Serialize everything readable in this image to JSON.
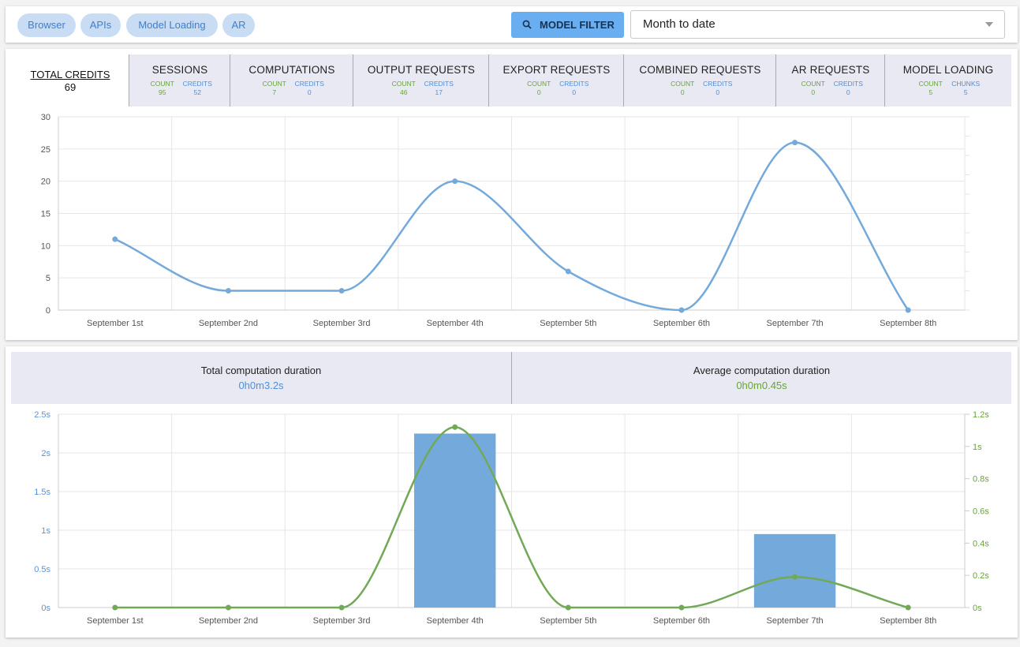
{
  "filters": {
    "chips": [
      "Browser",
      "APIs",
      "Model Loading",
      "AR"
    ],
    "filter_button_label": "MODEL FILTER",
    "date_range": "Month to date"
  },
  "summary": {
    "total_credits_label": "TOTAL CREDITS",
    "total_credits_value": "69",
    "tabs": [
      {
        "title": "SESSIONS",
        "sub1_label": "COUNT",
        "sub1_value": "95",
        "sub2_label": "CREDITS",
        "sub2_value": "52"
      },
      {
        "title": "COMPUTATIONS",
        "sub1_label": "COUNT",
        "sub1_value": "7",
        "sub2_label": "CREDITS",
        "sub2_value": "0"
      },
      {
        "title": "OUTPUT REQUESTS",
        "sub1_label": "COUNT",
        "sub1_value": "46",
        "sub2_label": "CREDITS",
        "sub2_value": "17"
      },
      {
        "title": "EXPORT REQUESTS",
        "sub1_label": "COUNT",
        "sub1_value": "0",
        "sub2_label": "CREDITS",
        "sub2_value": "0"
      },
      {
        "title": "COMBINED REQUESTS",
        "sub1_label": "COUNT",
        "sub1_value": "0",
        "sub2_label": "CREDITS",
        "sub2_value": "0"
      },
      {
        "title": "AR REQUESTS",
        "sub1_label": "COUNT",
        "sub1_value": "0",
        "sub2_label": "CREDITS",
        "sub2_value": "0"
      },
      {
        "title": "MODEL LOADING",
        "sub1_label": "COUNT",
        "sub1_value": "5",
        "sub2_label": "CHUNKS",
        "sub2_value": "5"
      }
    ]
  },
  "durations": {
    "total_label": "Total computation duration",
    "total_value": "0h0m3.2s",
    "average_label": "Average computation duration",
    "average_value": "0h0m0.45s"
  },
  "colors": {
    "credits_line": "#74a9db",
    "duration_bars": "#74a9db",
    "average_line": "#72a957"
  },
  "chart_data": [
    {
      "type": "line",
      "categories": [
        "September 1st",
        "September 2nd",
        "September 3rd",
        "September 4th",
        "September 5th",
        "September 6th",
        "September 7th",
        "September 8th"
      ],
      "series": [
        {
          "values": [
            11,
            3,
            3,
            20,
            6,
            0,
            26,
            0
          ]
        }
      ],
      "yticks": [
        "0",
        "5",
        "10",
        "15",
        "20",
        "25",
        "30"
      ],
      "ylim": [
        0,
        30
      ],
      "grid": true
    },
    {
      "type": "bar",
      "categories": [
        "September 1st",
        "September 2nd",
        "September 3rd",
        "September 4th",
        "September 5th",
        "September 6th",
        "September 7th",
        "September 8th"
      ],
      "series": [
        {
          "values": [
            0,
            0,
            0,
            2.25,
            0,
            0,
            0.95,
            0
          ],
          "axis": "left"
        },
        {
          "values": [
            0,
            0,
            0,
            1.12,
            0,
            0,
            0.19,
            0
          ],
          "axis": "right",
          "render": "line"
        }
      ],
      "left_ticks": [
        "0s",
        "0.5s",
        "1s",
        "1.5s",
        "2s",
        "2.5s"
      ],
      "left_ylim": [
        0,
        2.5
      ],
      "right_ticks": [
        "0s",
        "0.2s",
        "0.4s",
        "0.6s",
        "0.8s",
        "1s",
        "1.2s"
      ],
      "right_ylim": [
        0,
        1.2
      ],
      "grid": true
    }
  ]
}
